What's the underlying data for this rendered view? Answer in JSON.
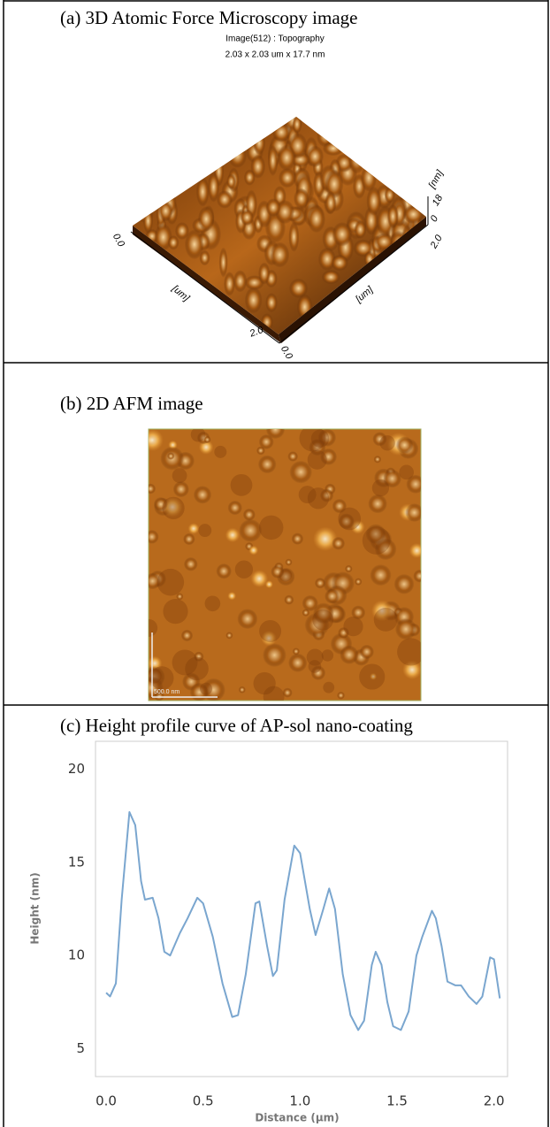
{
  "panels": {
    "a": {
      "title": "(a)  3D Atomic Force Microscopy image",
      "subtitle": "Image(512) : Topography",
      "dimensions": "2.03 x 2.03 um x 17.7 nm",
      "axis_labels": {
        "left_start": "0.0",
        "left_unit": "[um]",
        "left_end": "2.0",
        "right_start": "0.0",
        "right_unit": "[um]",
        "right_end": "2.0",
        "z_unit": "[nm]",
        "z_max": "18",
        "z_min": "0"
      }
    },
    "b": {
      "title": "(b)  2D AFM image",
      "scale_bar": "500.0 nm"
    }
  },
  "chart_data": {
    "type": "line",
    "title": "(c)  Height profile curve of AP-sol nano-coating",
    "xlabel": "Distance (µm)",
    "ylabel": "Height (nm)",
    "color": "#7aa6cf",
    "x": [
      0.0,
      0.02,
      0.05,
      0.08,
      0.12,
      0.15,
      0.18,
      0.2,
      0.24,
      0.27,
      0.3,
      0.33,
      0.38,
      0.42,
      0.47,
      0.5,
      0.55,
      0.6,
      0.65,
      0.68,
      0.72,
      0.77,
      0.79,
      0.83,
      0.86,
      0.88,
      0.92,
      0.97,
      1.0,
      1.05,
      1.08,
      1.12,
      1.15,
      1.18,
      1.22,
      1.26,
      1.3,
      1.33,
      1.37,
      1.39,
      1.42,
      1.45,
      1.48,
      1.52,
      1.56,
      1.6,
      1.63,
      1.68,
      1.7,
      1.73,
      1.76,
      1.8,
      1.83,
      1.87,
      1.91,
      1.94,
      1.98,
      2.0,
      2.03
    ],
    "values": [
      8.0,
      7.8,
      8.5,
      13,
      17.7,
      17,
      14,
      13,
      13.1,
      12,
      10.2,
      10,
      11.2,
      12,
      13.1,
      12.8,
      11,
      8.5,
      6.7,
      6.8,
      9,
      12.8,
      12.9,
      10.5,
      8.9,
      9.2,
      13,
      15.9,
      15.5,
      12.5,
      11.1,
      12.5,
      13.6,
      12.5,
      9,
      6.8,
      6,
      6.5,
      9.5,
      10.2,
      9.5,
      7.5,
      6.2,
      6,
      7,
      10,
      11,
      12.4,
      12,
      10.5,
      8.6,
      8.4,
      8.4,
      7.8,
      7.4,
      7.8,
      9.9,
      9.8,
      7.7
    ],
    "xlim": [
      -0.055,
      2.07
    ],
    "ylim": [
      3.5,
      21.5
    ],
    "xticks": [
      {
        "value": 0,
        "label": "0.0"
      },
      0.5,
      {
        "value": 1,
        "label": "1.0"
      },
      1.5,
      {
        "value": 2,
        "label": "2.0"
      }
    ],
    "yticks": [
      5,
      10,
      15,
      20
    ]
  }
}
